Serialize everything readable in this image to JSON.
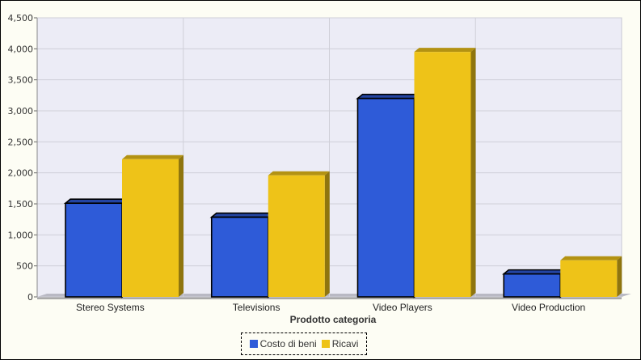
{
  "chart_data": {
    "type": "bar",
    "categories": [
      "Stereo Systems",
      "Televisions",
      "Video Players",
      "Video Production"
    ],
    "series": [
      {
        "name": "Costo di beni",
        "values": [
          1510,
          1285,
          3200,
          370
        ],
        "color": "#2e5bd8"
      },
      {
        "name": "Ricavi",
        "values": [
          2220,
          1960,
          3950,
          590
        ],
        "color": "#eec318"
      }
    ],
    "xlabel": "Prodotto categoria",
    "ylabel": "",
    "ylim": [
      0,
      4500
    ],
    "yticks": [
      "0",
      "500",
      "1,000",
      "1,500",
      "2,000",
      "2,500",
      "3,000",
      "3,500",
      "4,000",
      "4,500"
    ],
    "grid": true,
    "legend_position": "bottom"
  }
}
